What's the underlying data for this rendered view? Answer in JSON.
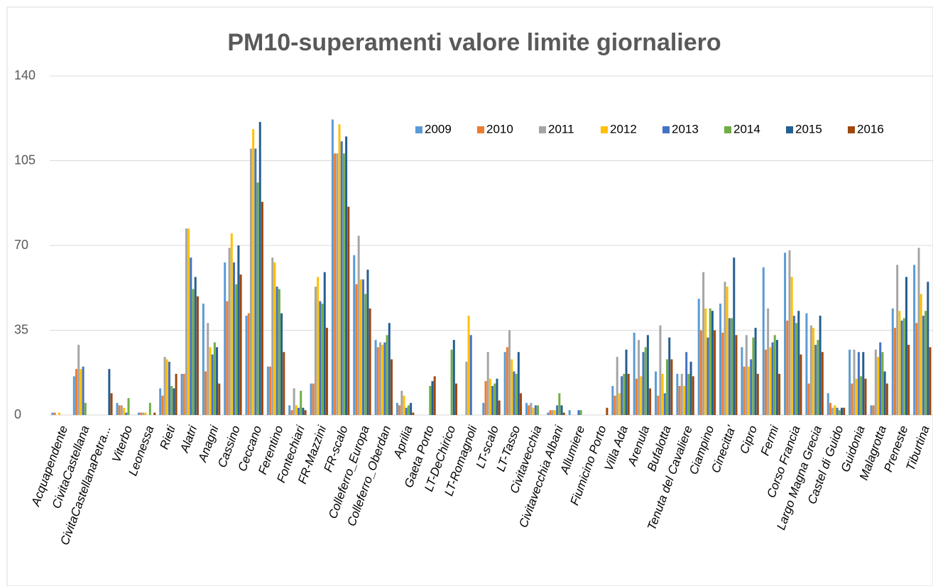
{
  "chart_data": {
    "type": "bar",
    "title": "PM10-superamenti valore limite giornaliero",
    "categories": [
      "Acquapendente",
      "CivitaCastellana",
      "CivitaCastellanaPetra...",
      "Viterbo",
      "Leonessa",
      "Rieti",
      "Alatri",
      "Anagni",
      "Cassino",
      "Ceccano",
      "Ferentino",
      "Fontechiari",
      "FR-Mazzini",
      "FR-scalo",
      "Colleferro_Europa",
      "Colleferro_Oberdan",
      "Aprilia",
      "Gaeta Porto",
      "LT-DeChirico",
      "LT-Romagnoli",
      "LT-scalo",
      "LT-Tasso",
      "Civitavecchia",
      "Civitavecchia Albani",
      "Allumiere",
      "Fiumicino Porto",
      "Villa Ada",
      "Arenula",
      "Bufalotta",
      "Tenuta del Cavaliere",
      "Ciampino",
      "Cinecitta'",
      "Cipro",
      "Fermi",
      "Corso Francia",
      "Largo Magna Grecia",
      "Castel di Guido",
      "Guidonia",
      "Malagrotta",
      "Preneste",
      "Tiburtina"
    ],
    "series": [
      {
        "name": "2009",
        "color": "#5b9bd5",
        "values": [
          1,
          16,
          null,
          5,
          1,
          11,
          17,
          46,
          63,
          41,
          20,
          4,
          13,
          122,
          66,
          31,
          5,
          null,
          null,
          null,
          5,
          26,
          5,
          1,
          2,
          null,
          12,
          34,
          18,
          17,
          48,
          46,
          28,
          61,
          67,
          42,
          9,
          27,
          4,
          44,
          62
        ]
      },
      {
        "name": "2010",
        "color": "#ed7d31",
        "values": [
          1,
          19,
          null,
          4,
          1,
          8,
          17,
          18,
          47,
          42,
          20,
          2,
          13,
          108,
          54,
          28,
          4,
          null,
          null,
          null,
          14,
          28,
          4,
          2,
          null,
          null,
          8,
          15,
          8,
          12,
          35,
          34,
          20,
          27,
          39,
          13,
          5,
          13,
          4,
          36,
          38
        ]
      },
      {
        "name": "2011",
        "color": "#a5a5a5",
        "values": [
          0,
          29,
          null,
          4,
          1,
          24,
          77,
          38,
          69,
          110,
          65,
          11,
          53,
          108,
          74,
          30,
          10,
          null,
          null,
          22,
          26,
          35,
          5,
          2,
          null,
          null,
          24,
          31,
          37,
          17,
          59,
          55,
          33,
          44,
          68,
          37,
          3,
          27,
          27,
          62,
          69
        ]
      },
      {
        "name": "2012",
        "color": "#ffc000",
        "values": [
          1,
          19,
          null,
          3,
          1,
          23,
          77,
          28,
          75,
          118,
          63,
          4,
          57,
          120,
          56,
          29,
          8,
          null,
          null,
          41,
          15,
          23,
          3,
          2,
          null,
          null,
          9,
          16,
          17,
          12,
          44,
          53,
          20,
          28,
          57,
          36,
          4,
          15,
          24,
          43,
          50
        ]
      },
      {
        "name": "2013",
        "color": "#4472c4",
        "values": [
          null,
          20,
          null,
          1,
          null,
          22,
          65,
          25,
          63,
          110,
          53,
          3,
          47,
          113,
          56,
          30,
          3,
          null,
          null,
          33,
          12,
          18,
          4,
          4,
          2,
          null,
          16,
          26,
          9,
          26,
          32,
          40,
          23,
          30,
          41,
          29,
          3,
          26,
          30,
          39,
          41
        ]
      },
      {
        "name": "2014",
        "color": "#70ad47",
        "values": [
          null,
          5,
          null,
          7,
          5,
          12,
          52,
          30,
          54,
          96,
          52,
          10,
          46,
          108,
          50,
          33,
          4,
          12,
          27,
          null,
          13,
          17,
          4,
          9,
          2,
          null,
          17,
          28,
          23,
          17,
          44,
          40,
          32,
          33,
          38,
          31,
          2,
          16,
          26,
          40,
          43
        ]
      },
      {
        "name": "2015",
        "color": "#255e91",
        "values": [
          null,
          null,
          19,
          null,
          null,
          11,
          57,
          28,
          70,
          121,
          42,
          3,
          59,
          115,
          60,
          38,
          5,
          14,
          31,
          null,
          15,
          26,
          null,
          4,
          null,
          null,
          27,
          33,
          32,
          22,
          43,
          65,
          36,
          31,
          43,
          41,
          3,
          26,
          18,
          57,
          55
        ]
      },
      {
        "name": "2016",
        "color": "#9e480e",
        "values": [
          null,
          null,
          9,
          null,
          1,
          17,
          49,
          13,
          58,
          88,
          26,
          2,
          36,
          86,
          44,
          23,
          1,
          16,
          13,
          null,
          6,
          9,
          null,
          1,
          null,
          3,
          17,
          11,
          23,
          16,
          35,
          33,
          17,
          17,
          25,
          26,
          3,
          15,
          13,
          29,
          28
        ]
      }
    ],
    "ylim": [
      0,
      140
    ],
    "yticks": [
      0,
      35,
      70,
      105,
      140
    ],
    "grid": true,
    "legend": "top-right"
  }
}
